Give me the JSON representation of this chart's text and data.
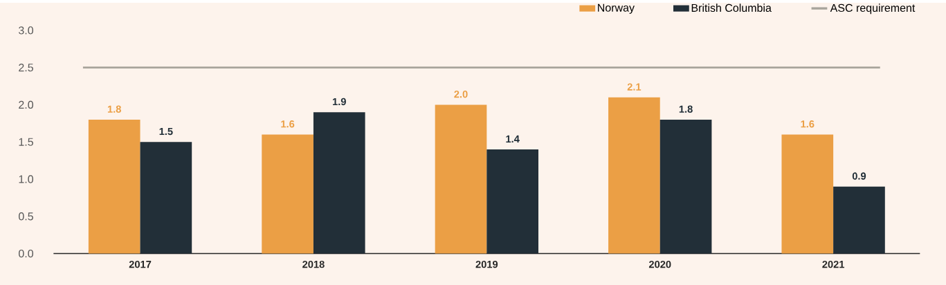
{
  "chart_data": {
    "type": "bar",
    "categories": [
      "2017",
      "2018",
      "2019",
      "2020",
      "2021"
    ],
    "series": [
      {
        "name": "Norway",
        "color": "#eb9f45",
        "values": [
          1.8,
          1.6,
          2.0,
          2.1,
          1.6
        ],
        "value_labels": [
          "1.8",
          "1.6",
          "2.0",
          "2.1",
          "1.6"
        ]
      },
      {
        "name": "British Columbia",
        "color": "#222f38",
        "values": [
          1.5,
          1.9,
          1.4,
          1.8,
          0.9
        ],
        "value_labels": [
          "1.5",
          "1.9",
          "1.4",
          "1.8",
          "0.9"
        ]
      }
    ],
    "ylim": [
      0,
      3
    ],
    "yticks": [
      {
        "value": 0,
        "label": "0.0"
      },
      0.5,
      {
        "value": 1,
        "label": "1.0"
      },
      1.5,
      {
        "value": 2,
        "label": "2.0"
      },
      2.5,
      {
        "value": 3,
        "label": "3.0"
      }
    ],
    "ref_lines": [
      {
        "axis": "y",
        "value": 2.5,
        "label": "ASC requirement",
        "color": "#a8a59c"
      }
    ],
    "legend": "top right"
  }
}
